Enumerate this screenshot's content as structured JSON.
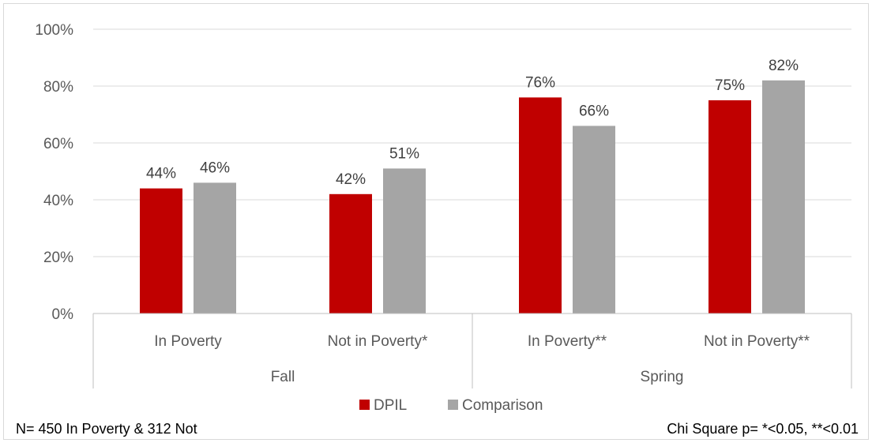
{
  "chart_data": {
    "type": "bar",
    "groups": [
      {
        "label": "Fall",
        "categories": [
          "In Poverty",
          "Not in Poverty*"
        ]
      },
      {
        "label": "Spring",
        "categories": [
          "In Poverty**",
          "Not in Poverty**"
        ]
      }
    ],
    "series": [
      {
        "name": "DPIL",
        "color": "#c00000",
        "values": [
          44,
          42,
          76,
          75
        ],
        "labels": [
          "44%",
          "42%",
          "76%",
          "75%"
        ]
      },
      {
        "name": "Comparison",
        "color": "#a5a5a5",
        "values": [
          46,
          51,
          66,
          82
        ],
        "labels": [
          "46%",
          "51%",
          "66%",
          "82%"
        ]
      }
    ],
    "y_ticks": [
      "0%",
      "20%",
      "40%",
      "60%",
      "80%",
      "100%"
    ],
    "ylim": [
      0,
      100
    ],
    "grid": true,
    "legend_position": "bottom"
  },
  "footnotes": {
    "left": "N= 450 In Poverty & 312 Not",
    "right": "Chi Square p= *<0.05, **<0.01"
  },
  "colors": {
    "gridline": "#d9d9d9",
    "axis": "#bfbfbf"
  }
}
